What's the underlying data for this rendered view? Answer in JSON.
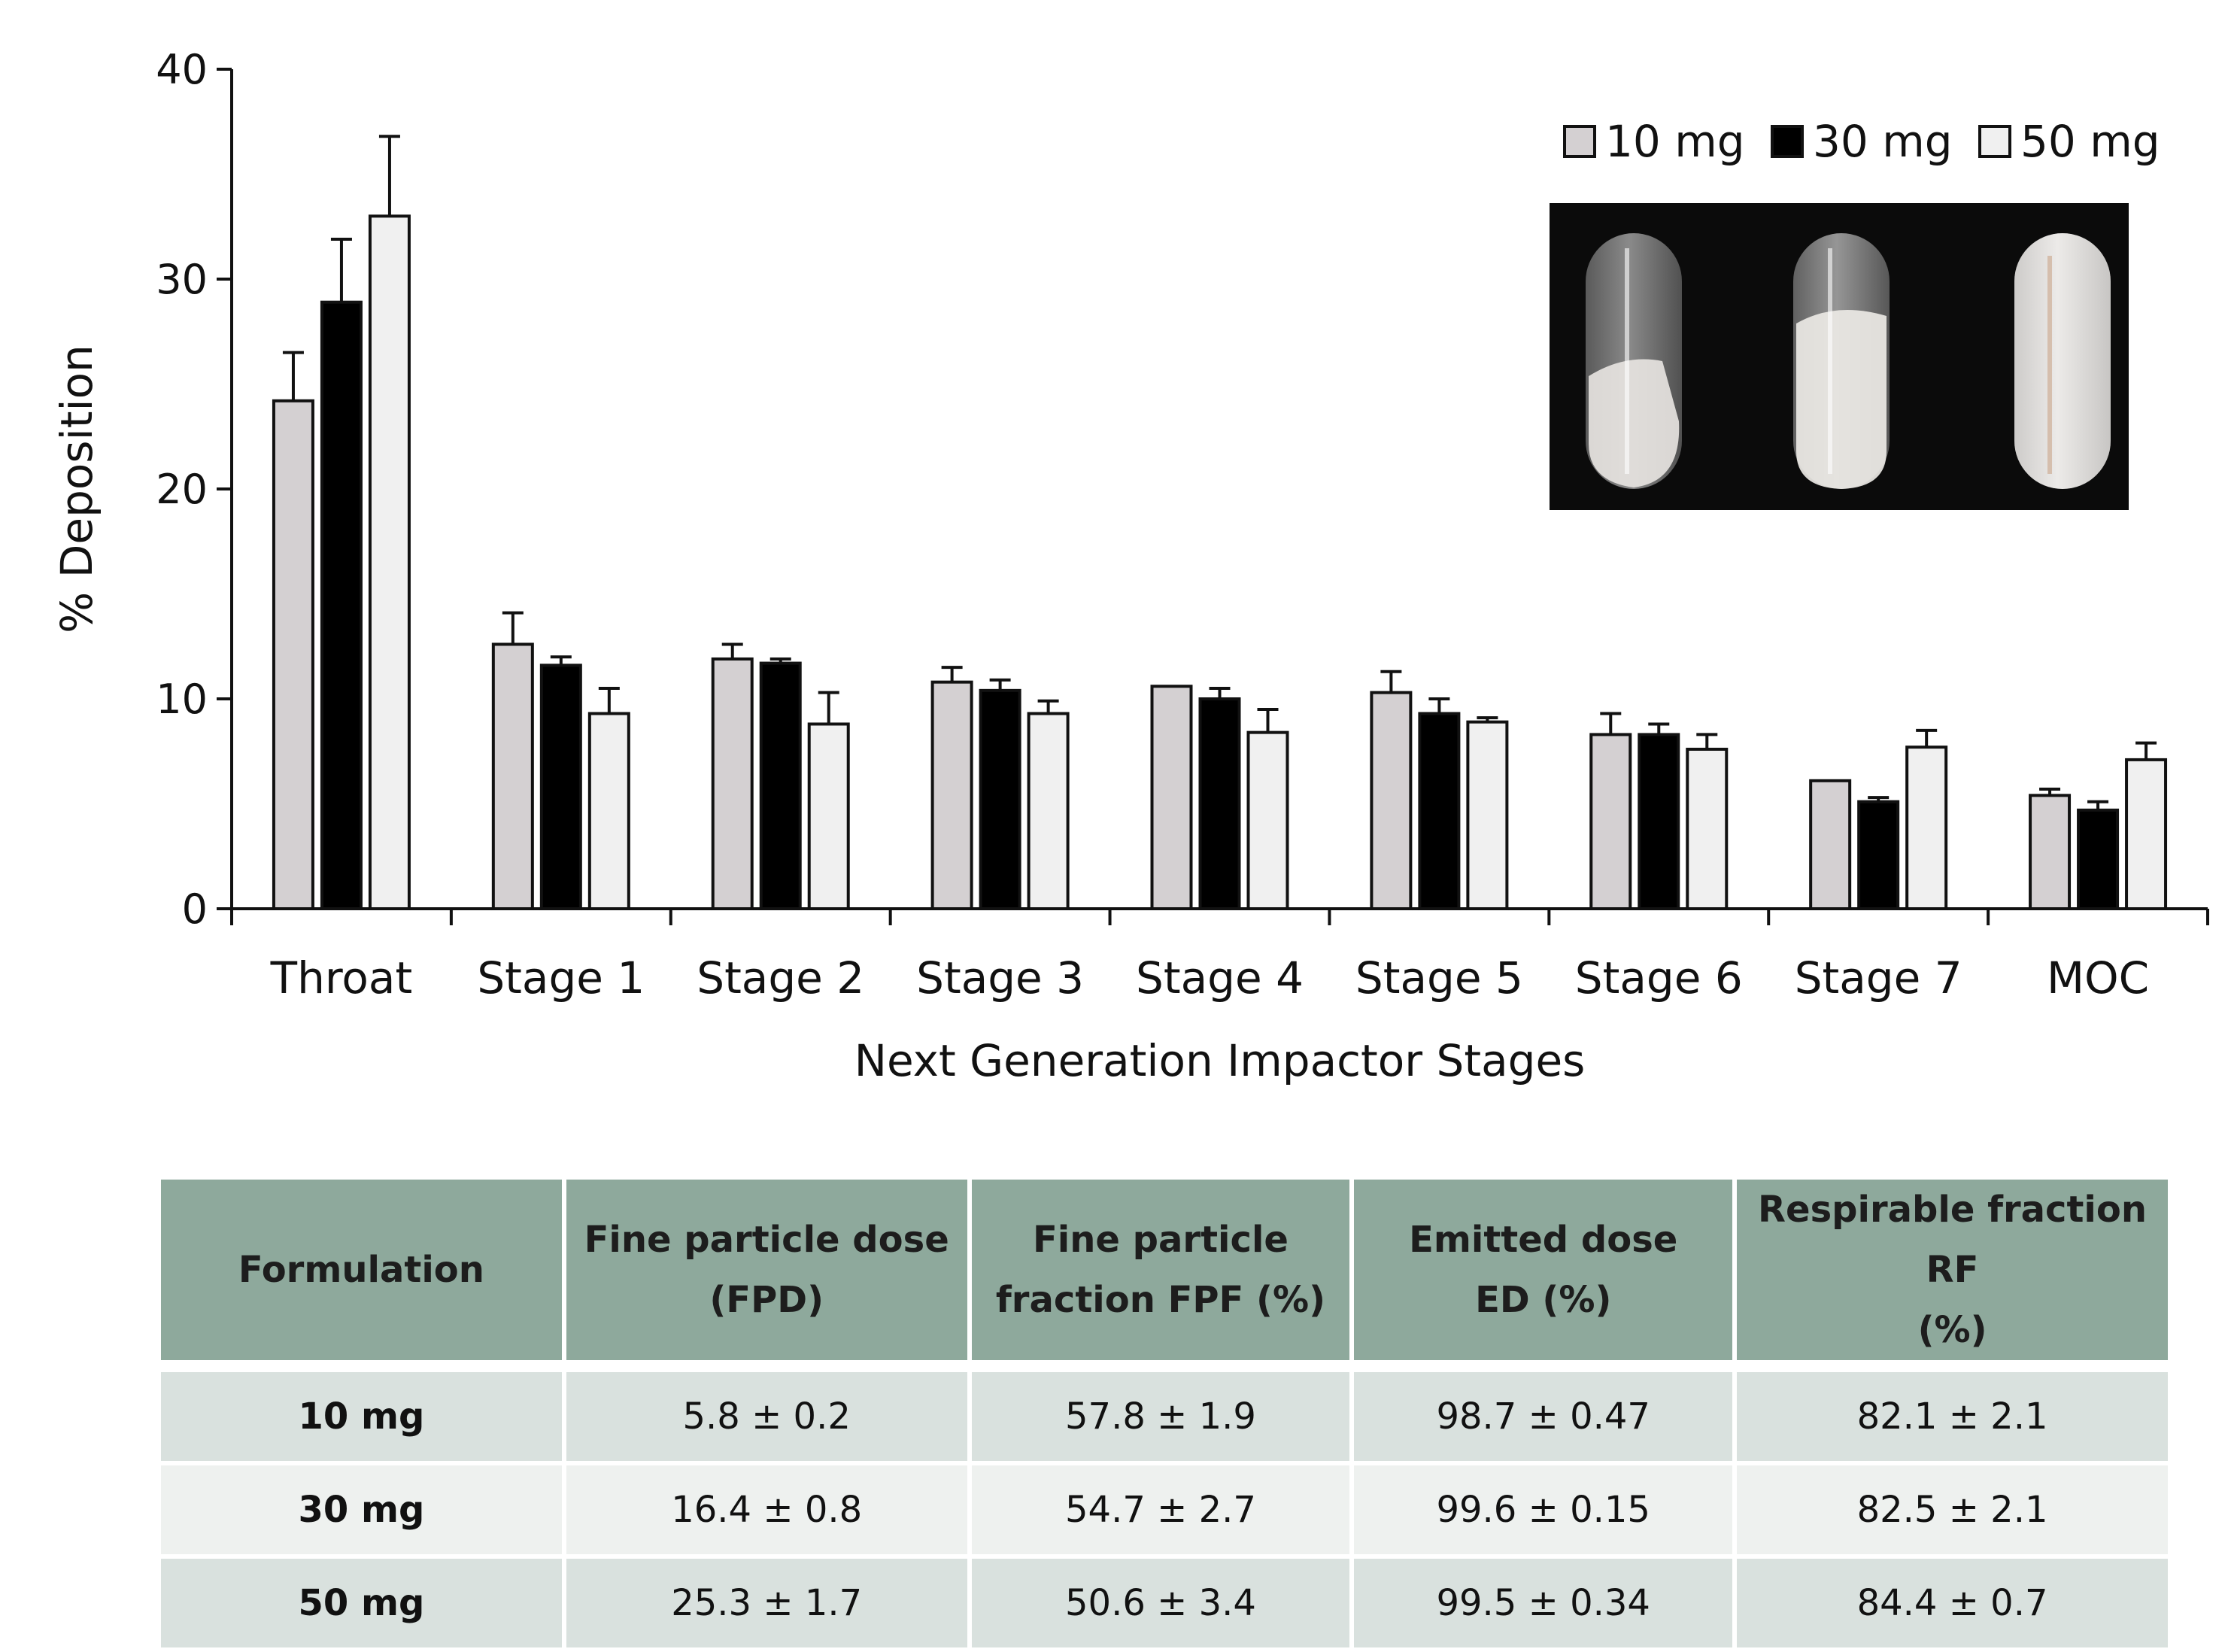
{
  "chart_data": {
    "type": "bar",
    "title": "",
    "xlabel": "Next Generation Impactor Stages",
    "ylabel": "% Deposition",
    "ylim": [
      0,
      40
    ],
    "yticks": [
      0,
      10,
      20,
      30,
      40
    ],
    "grid": false,
    "legend_position": "top-right",
    "categories": [
      "Throat",
      "Stage 1",
      "Stage 2",
      "Stage 3",
      "Stage 4",
      "Stage 5",
      "Stage 6",
      "Stage 7",
      "MOC"
    ],
    "series": [
      {
        "name": "10 mg",
        "color": "#d4d0d2",
        "values": [
          24.2,
          12.6,
          11.9,
          10.8,
          10.6,
          10.3,
          8.3,
          6.1,
          5.4
        ],
        "errors": [
          2.3,
          1.5,
          0.7,
          0.7,
          0.0,
          1.0,
          1.0,
          0.0,
          0.3
        ]
      },
      {
        "name": "30 mg",
        "color": "#000000",
        "values": [
          28.9,
          11.6,
          11.7,
          10.4,
          10.0,
          9.3,
          8.3,
          5.1,
          4.7
        ],
        "errors": [
          3.0,
          0.4,
          0.2,
          0.5,
          0.5,
          0.7,
          0.5,
          0.2,
          0.4
        ]
      },
      {
        "name": "50 mg",
        "color": "#f0f0f0",
        "values": [
          33.0,
          9.3,
          8.8,
          9.3,
          8.4,
          8.9,
          7.6,
          7.7,
          7.1
        ],
        "errors": [
          3.8,
          1.2,
          1.5,
          0.6,
          1.1,
          0.2,
          0.7,
          0.8,
          0.8
        ]
      }
    ],
    "inset_photo": "three-capsules-photo"
  },
  "table": {
    "headers": [
      [
        "Formulation"
      ],
      [
        "Fine particle dose",
        "(FPD)"
      ],
      [
        "Fine particle",
        "fraction FPF (%)"
      ],
      [
        "Emitted dose",
        "ED (%)"
      ],
      [
        "Respirable fraction RF",
        "(%)"
      ]
    ],
    "rows": [
      [
        "10 mg",
        "5.8 ± 0.2",
        "57.8 ± 1.9",
        "98.7 ± 0.47",
        "82.1 ± 2.1"
      ],
      [
        "30 mg",
        "16.4 ± 0.8",
        "54.7 ± 2.7",
        "99.6 ± 0.15",
        "82.5 ± 2.1"
      ],
      [
        "50 mg",
        "25.3 ± 1.7",
        "50.6 ± 3.4",
        "99.5 ± 0.34",
        "84.4 ± 0.7"
      ]
    ]
  }
}
